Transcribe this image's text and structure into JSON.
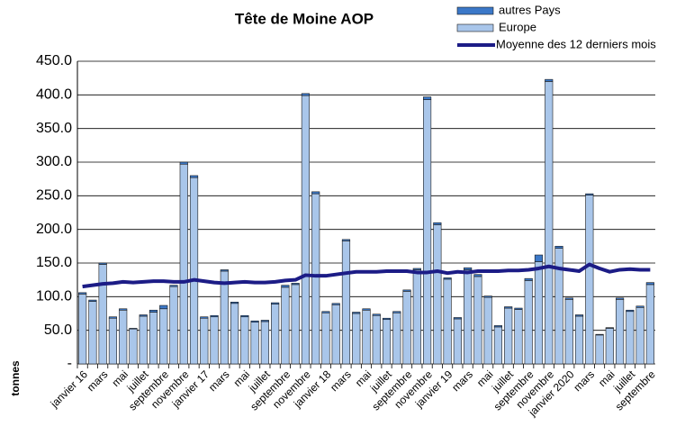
{
  "chart_data": {
    "type": "bar",
    "title": "Tête de Moine AOP",
    "y_label": "tonnes",
    "categories": [
      "janvier 16",
      null,
      "mars",
      null,
      "mai",
      null,
      "juillet",
      null,
      "septembre",
      null,
      "novembre",
      null,
      "janvier 17",
      null,
      "mars",
      null,
      "mai",
      null,
      "juillet",
      null,
      "septembre",
      null,
      "novembre",
      null,
      "janvier 18",
      null,
      "mars",
      null,
      "mai",
      null,
      "juillet",
      null,
      "septembre",
      null,
      "novembre",
      null,
      "janvier 19",
      null,
      "mars",
      null,
      "mai",
      null,
      "juillet",
      null,
      "septembre",
      null,
      "novembre",
      null,
      "janvier 2020",
      null,
      "mars",
      null,
      "mai",
      null,
      "juillet",
      null,
      "septembre"
    ],
    "series": [
      {
        "name": "autres Pays",
        "type": "bar",
        "color": "#3b78c8",
        "values": [
          2,
          2,
          2,
          2,
          2,
          1,
          2,
          3,
          5,
          2,
          3,
          3,
          2,
          2,
          2,
          2,
          2,
          2,
          2,
          2,
          3,
          2,
          3,
          3,
          2,
          2,
          2,
          2,
          2,
          2,
          2,
          2,
          2,
          2,
          4,
          3,
          2,
          2,
          3,
          3,
          2,
          2,
          2,
          2,
          3,
          10,
          3,
          3,
          2,
          2,
          2,
          1,
          1,
          2,
          2,
          2,
          3
        ]
      },
      {
        "name": "Europe",
        "type": "bar",
        "color": "#a9c6ea",
        "values": [
          104,
          93,
          148,
          68,
          80,
          52,
          71,
          77,
          82,
          115,
          297,
          277,
          68,
          70,
          138,
          90,
          70,
          62,
          63,
          89,
          114,
          118,
          399,
          253,
          76,
          88,
          183,
          75,
          80,
          72,
          66,
          76,
          108,
          140,
          393,
          207,
          126,
          67,
          140,
          130,
          99,
          55,
          83,
          81,
          124,
          152,
          420,
          172,
          96,
          71,
          251,
          43,
          53,
          96,
          78,
          84,
          118
        ]
      },
      {
        "name": "Moyenne des 12 derniers mois",
        "type": "line",
        "color": "#1c1c86",
        "values": [
          115,
          117,
          119,
          120,
          122,
          121,
          122,
          123,
          123,
          122,
          122,
          125,
          123,
          121,
          120,
          121,
          122,
          121,
          121,
          122,
          124,
          125,
          132,
          131,
          131,
          133,
          135,
          137,
          137,
          137,
          138,
          138,
          138,
          136,
          136,
          138,
          135,
          137,
          136,
          138,
          138,
          138,
          139,
          139,
          140,
          142,
          145,
          142,
          140,
          138,
          148,
          142,
          137,
          140,
          141,
          140,
          140
        ]
      }
    ],
    "ylim": [
      0,
      450
    ],
    "yticks": [
      {
        "value": 0,
        "label": "-"
      },
      {
        "value": 50,
        "label": "50.0"
      },
      {
        "value": 100,
        "label": "100.0"
      },
      {
        "value": 150,
        "label": "150.0"
      },
      {
        "value": 200,
        "label": "200.0"
      },
      {
        "value": 250,
        "label": "250.0"
      },
      {
        "value": 300,
        "label": "300.0"
      },
      {
        "value": 350,
        "label": "350.0"
      },
      {
        "value": 400,
        "label": "400.0"
      },
      {
        "value": 450,
        "label": "450.0"
      }
    ],
    "grid": true
  }
}
